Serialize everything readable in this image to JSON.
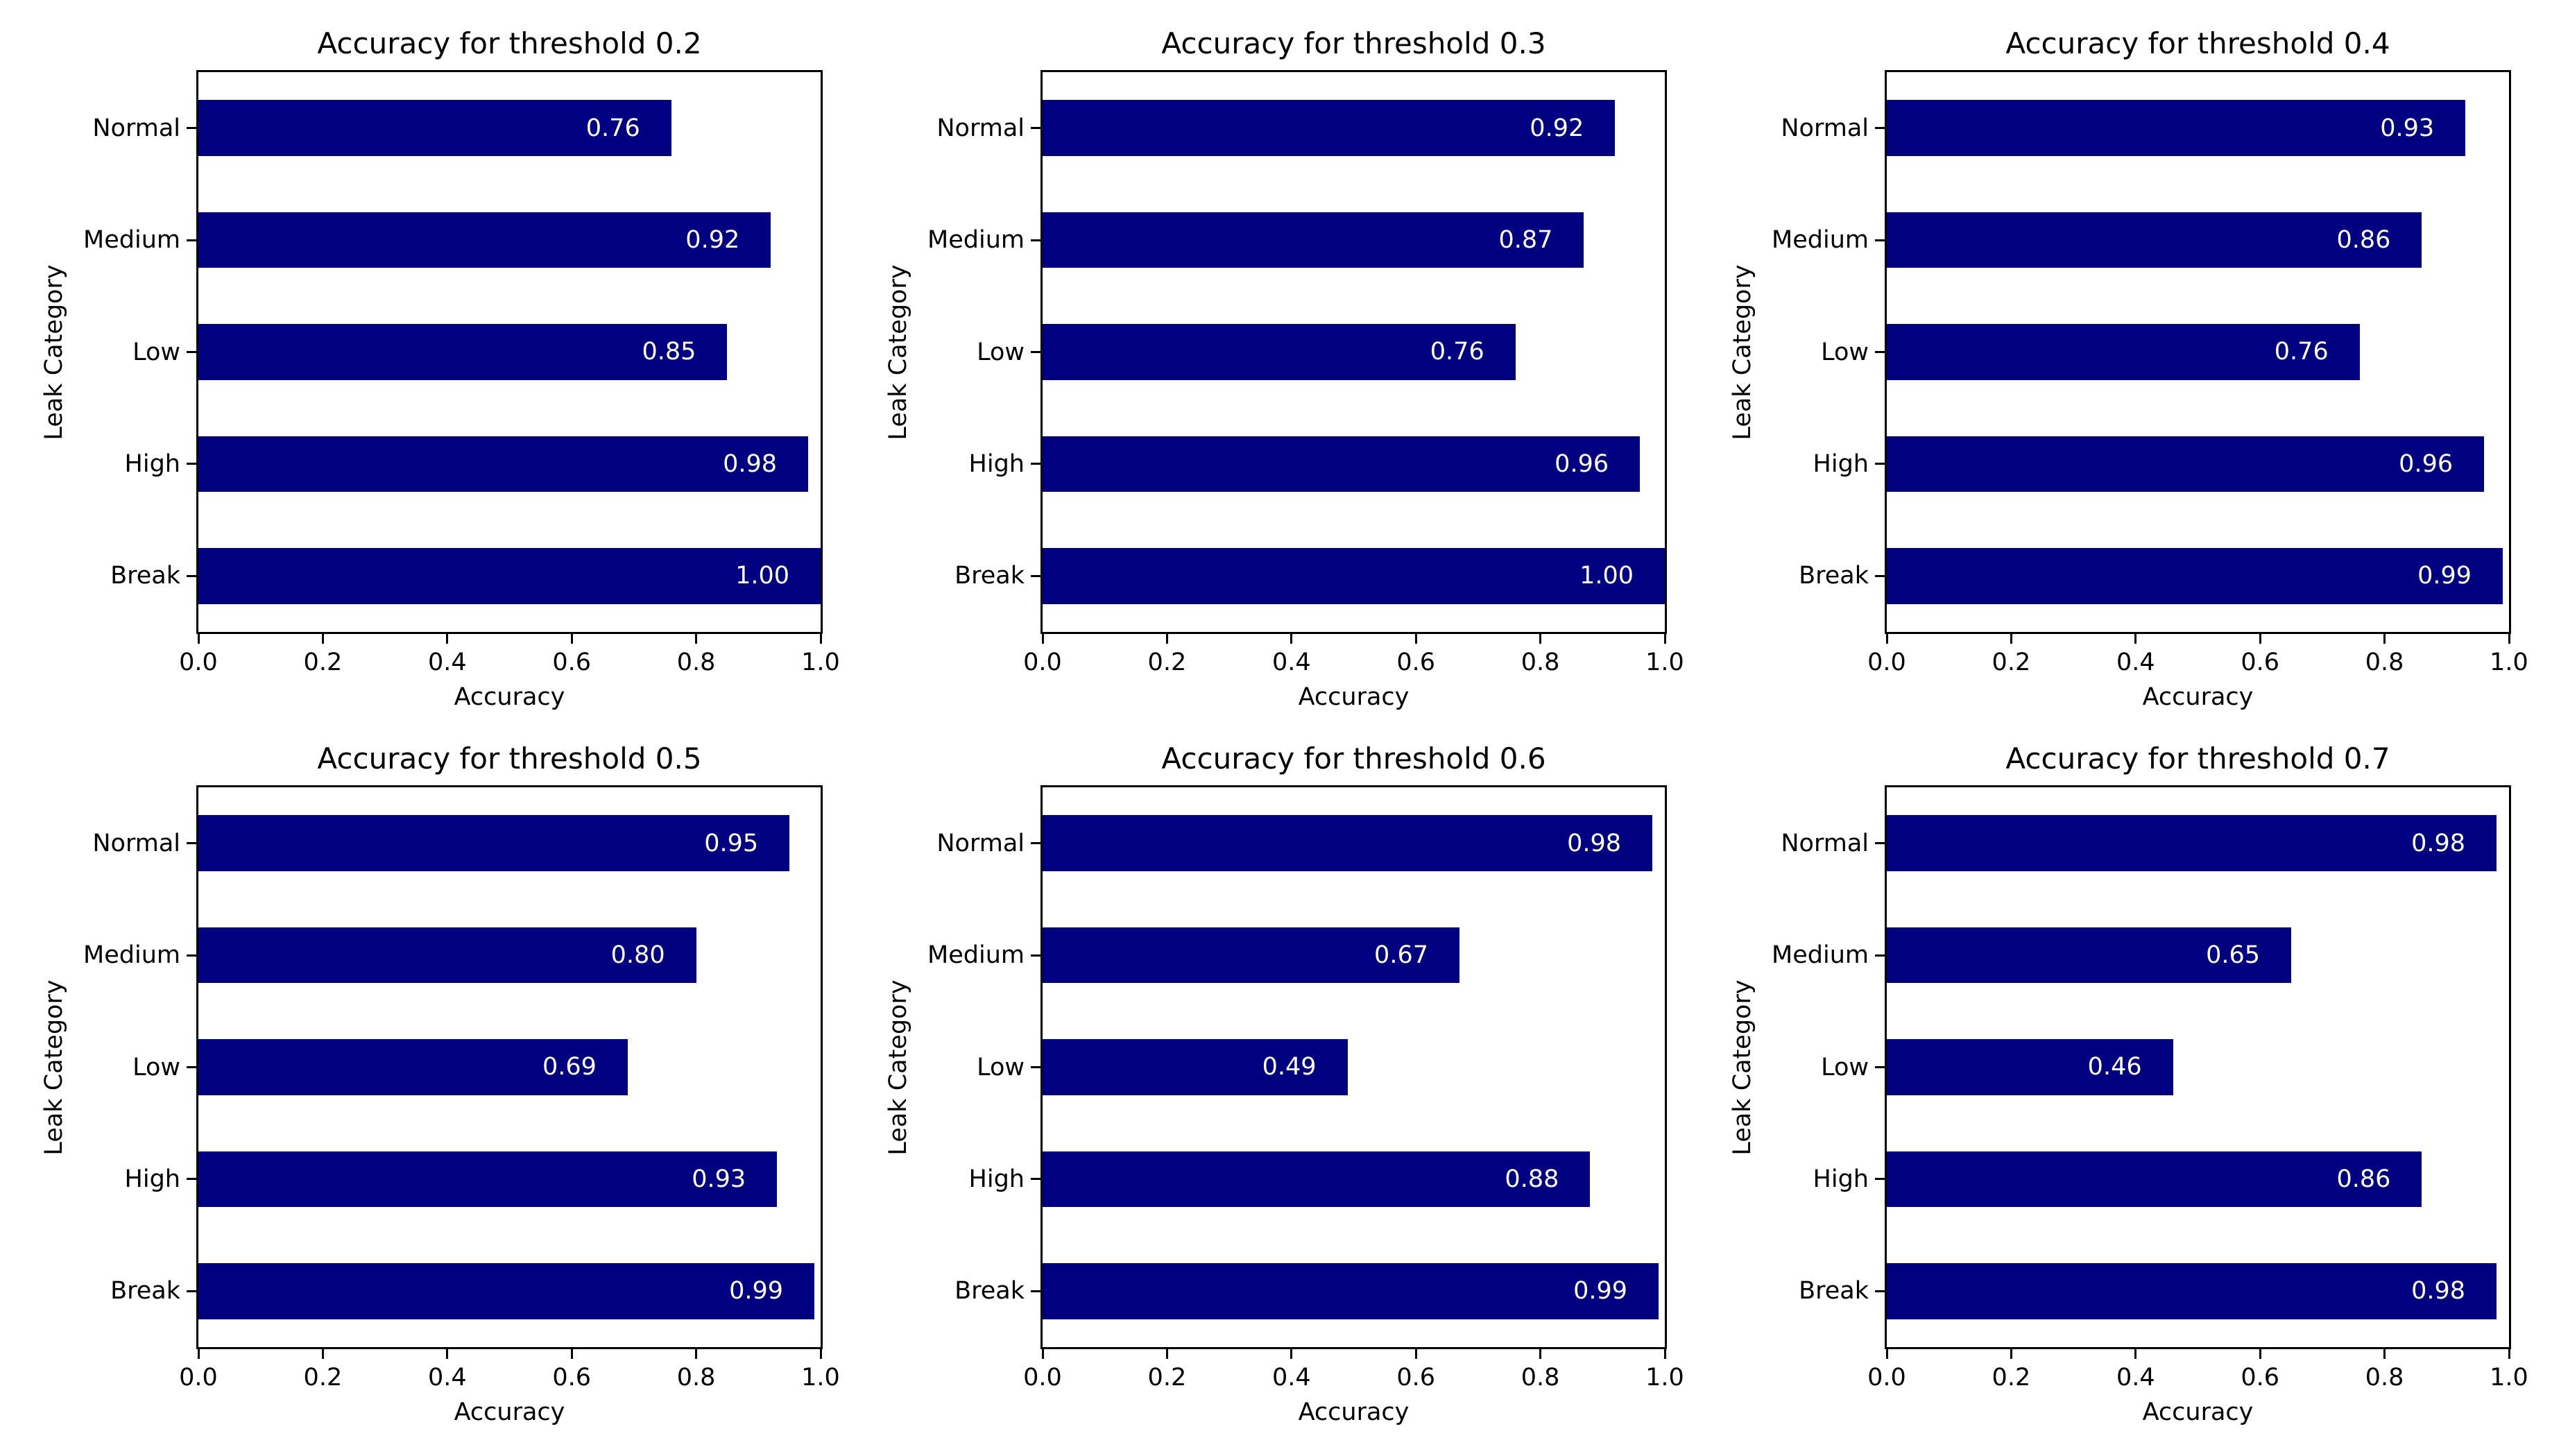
{
  "figure": {
    "background": "#ffffff",
    "text_color": "#000000",
    "spine_color": "#000000"
  },
  "colors": {
    "bar": "#000080",
    "bar_value_label": "#ffffff"
  },
  "chart_data": [
    {
      "type": "bar",
      "orientation": "horizontal",
      "title": "Accuracy for threshold 0.2",
      "xlabel": "Accuracy",
      "ylabel": "Leak Category",
      "categories": [
        "Normal",
        "Medium",
        "Low",
        "High",
        "Break"
      ],
      "values": [
        0.76,
        0.92,
        0.85,
        0.98,
        1.0
      ],
      "value_labels": [
        "0.76",
        "0.92",
        "0.85",
        "0.98",
        "1.00"
      ],
      "xlim": [
        0.0,
        1.0
      ],
      "xtick_values": [
        0.0,
        0.2,
        0.4,
        0.6,
        0.8,
        1.0
      ],
      "xtick_labels": [
        "0.0",
        "0.2",
        "0.4",
        "0.6",
        "0.8",
        "1.0"
      ],
      "grid": false,
      "legend": null
    },
    {
      "type": "bar",
      "orientation": "horizontal",
      "title": "Accuracy for threshold 0.3",
      "xlabel": "Accuracy",
      "ylabel": "Leak Category",
      "categories": [
        "Normal",
        "Medium",
        "Low",
        "High",
        "Break"
      ],
      "values": [
        0.92,
        0.87,
        0.76,
        0.96,
        1.0
      ],
      "value_labels": [
        "0.92",
        "0.87",
        "0.76",
        "0.96",
        "1.00"
      ],
      "xlim": [
        0.0,
        1.0
      ],
      "xtick_values": [
        0.0,
        0.2,
        0.4,
        0.6,
        0.8,
        1.0
      ],
      "xtick_labels": [
        "0.0",
        "0.2",
        "0.4",
        "0.6",
        "0.8",
        "1.0"
      ],
      "grid": false,
      "legend": null
    },
    {
      "type": "bar",
      "orientation": "horizontal",
      "title": "Accuracy for threshold 0.4",
      "xlabel": "Accuracy",
      "ylabel": "Leak Category",
      "categories": [
        "Normal",
        "Medium",
        "Low",
        "High",
        "Break"
      ],
      "values": [
        0.93,
        0.86,
        0.76,
        0.96,
        0.99
      ],
      "value_labels": [
        "0.93",
        "0.86",
        "0.76",
        "0.96",
        "0.99"
      ],
      "xlim": [
        0.0,
        1.0
      ],
      "xtick_values": [
        0.0,
        0.2,
        0.4,
        0.6,
        0.8,
        1.0
      ],
      "xtick_labels": [
        "0.0",
        "0.2",
        "0.4",
        "0.6",
        "0.8",
        "1.0"
      ],
      "grid": false,
      "legend": null
    },
    {
      "type": "bar",
      "orientation": "horizontal",
      "title": "Accuracy for threshold 0.5",
      "xlabel": "Accuracy",
      "ylabel": "Leak Category",
      "categories": [
        "Normal",
        "Medium",
        "Low",
        "High",
        "Break"
      ],
      "values": [
        0.95,
        0.8,
        0.69,
        0.93,
        0.99
      ],
      "value_labels": [
        "0.95",
        "0.80",
        "0.69",
        "0.93",
        "0.99"
      ],
      "xlim": [
        0.0,
        1.0
      ],
      "xtick_values": [
        0.0,
        0.2,
        0.4,
        0.6,
        0.8,
        1.0
      ],
      "xtick_labels": [
        "0.0",
        "0.2",
        "0.4",
        "0.6",
        "0.8",
        "1.0"
      ],
      "grid": false,
      "legend": null
    },
    {
      "type": "bar",
      "orientation": "horizontal",
      "title": "Accuracy for threshold 0.6",
      "xlabel": "Accuracy",
      "ylabel": "Leak Category",
      "categories": [
        "Normal",
        "Medium",
        "Low",
        "High",
        "Break"
      ],
      "values": [
        0.98,
        0.67,
        0.49,
        0.88,
        0.99
      ],
      "value_labels": [
        "0.98",
        "0.67",
        "0.49",
        "0.88",
        "0.99"
      ],
      "xlim": [
        0.0,
        1.0
      ],
      "xtick_values": [
        0.0,
        0.2,
        0.4,
        0.6,
        0.8,
        1.0
      ],
      "xtick_labels": [
        "0.0",
        "0.2",
        "0.4",
        "0.6",
        "0.8",
        "1.0"
      ],
      "grid": false,
      "legend": null
    },
    {
      "type": "bar",
      "orientation": "horizontal",
      "title": "Accuracy for threshold 0.7",
      "xlabel": "Accuracy",
      "ylabel": "Leak Category",
      "categories": [
        "Normal",
        "Medium",
        "Low",
        "High",
        "Break"
      ],
      "values": [
        0.98,
        0.65,
        0.46,
        0.86,
        0.98
      ],
      "value_labels": [
        "0.98",
        "0.65",
        "0.46",
        "0.86",
        "0.98"
      ],
      "xlim": [
        0.0,
        1.0
      ],
      "xtick_values": [
        0.0,
        0.2,
        0.4,
        0.6,
        0.8,
        1.0
      ],
      "xtick_labels": [
        "0.0",
        "0.2",
        "0.4",
        "0.6",
        "0.8",
        "1.0"
      ],
      "grid": false,
      "legend": null
    }
  ]
}
